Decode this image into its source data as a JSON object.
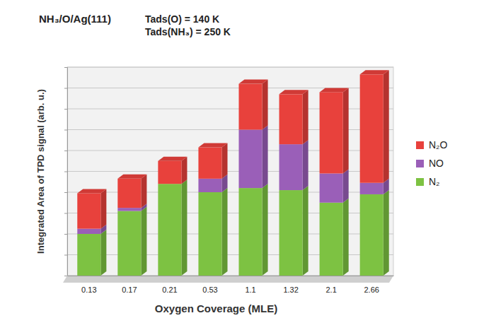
{
  "chart_data": {
    "type": "bar",
    "title": "NH₃/O/Ag(111)",
    "annotations": [
      "Tads(O) = 140 K",
      "Tads(NH₃) = 250 K"
    ],
    "x_label": "Oxygen Coverage (MLE)",
    "y_label": "Integrated Area of TPD signal (arb. u.)",
    "categories": [
      "0.13",
      "0.17",
      "0.21",
      "0.53",
      "1.1",
      "1.32",
      "2.1",
      "2.66"
    ],
    "series": [
      {
        "name": "N₂",
        "color": "#7dc242",
        "values": [
          2.0,
          3.1,
          4.4,
          4.0,
          4.2,
          4.1,
          3.5,
          3.9
        ]
      },
      {
        "name": "NO",
        "color": "#9a5fb8",
        "values": [
          0.25,
          0.15,
          0,
          0.65,
          2.8,
          2.2,
          1.4,
          0.55
        ]
      },
      {
        "name": "N₂O",
        "color": "#e8413c",
        "values": [
          1.7,
          1.4,
          1.1,
          1.5,
          2.2,
          2.4,
          3.9,
          5.2
        ]
      }
    ],
    "ylim": [
      0,
      10
    ],
    "yticks": [
      0,
      1,
      2,
      3,
      4,
      5,
      6,
      7,
      8,
      9,
      10
    ],
    "stacked": true,
    "grid": true,
    "legend": "right",
    "tick_labels": "x"
  }
}
